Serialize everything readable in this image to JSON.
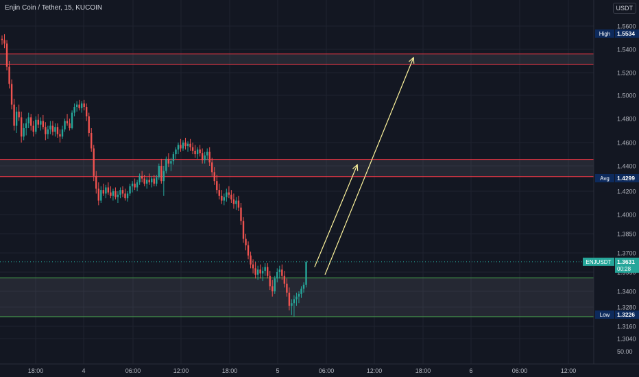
{
  "header": {
    "title": "Enjin Coin / Tether, 15, KUCOIN",
    "currency_button": "USDT"
  },
  "colors": {
    "background": "#131722",
    "grid": "#1f2330",
    "up": "#26a69a",
    "down": "#ef5350",
    "zone_red": "#f23645",
    "zone_green": "#4caf50",
    "arrow": "#fff59d",
    "axis_text": "#b2b5be",
    "label_bg": "#0d2a5c",
    "price_label_bg": "#26a69a"
  },
  "axis_labels": {
    "y_ticks": [
      1.56,
      1.54,
      1.52,
      1.5,
      1.48,
      1.46,
      1.44,
      1.42,
      1.4,
      1.385,
      1.37,
      1.355,
      1.34,
      1.328,
      1.316,
      1.304
    ],
    "y_tick_texts": [
      "1.5600",
      "1.5400",
      "1.5200",
      "1.5000",
      "1.4800",
      "1.4600",
      "1.4400",
      "1.4200",
      "1.4000",
      "1.3850",
      "1.3700",
      "1.3550",
      "1.3400",
      "1.3280",
      "1.3160",
      "1.3040"
    ],
    "y_extra": "50.00",
    "x_ticks": [
      "18:00",
      "4",
      "06:00",
      "12:00",
      "18:00",
      "5",
      "06:00",
      "12:00",
      "18:00",
      "6",
      "06:00",
      "12:00"
    ]
  },
  "price_labels": {
    "high": {
      "name": "High",
      "value": "1.5534"
    },
    "avg": {
      "name": "Avg",
      "value": "1.4299"
    },
    "current": {
      "name": "ENJUSDT",
      "value": "1.3631",
      "countdown": "00:28"
    },
    "low": {
      "name": "Low",
      "value": "1.3226"
    }
  },
  "chart_data": {
    "type": "candlestick",
    "title": "Enjin Coin / Tether, 15, KUCOIN",
    "y_scale": "piecewise (as printed on axis)",
    "ylim": [
      1.304,
      1.565
    ],
    "high": 1.5534,
    "avg": 1.4299,
    "low": 1.3226,
    "last": 1.3631,
    "zones": [
      {
        "color": "red",
        "from": 1.527,
        "to": 1.536
      },
      {
        "color": "red",
        "from": 1.4315,
        "to": 1.4455
      },
      {
        "color": "green",
        "from": 1.322,
        "to": 1.3505
      }
    ],
    "candles": [
      [
        1.549,
        1.552,
        1.544,
        1.548
      ],
      [
        1.548,
        1.553,
        1.541,
        1.545
      ],
      [
        1.545,
        1.548,
        1.522,
        1.525
      ],
      [
        1.525,
        1.53,
        1.506,
        1.51
      ],
      [
        1.51,
        1.514,
        1.488,
        1.492
      ],
      [
        1.492,
        1.497,
        1.47,
        1.474
      ],
      [
        1.474,
        1.49,
        1.468,
        1.486
      ],
      [
        1.486,
        1.492,
        1.478,
        1.481
      ],
      [
        1.481,
        1.486,
        1.46,
        1.465
      ],
      [
        1.465,
        1.476,
        1.462,
        1.472
      ],
      [
        1.472,
        1.48,
        1.466,
        1.476
      ],
      [
        1.476,
        1.485,
        1.472,
        1.481
      ],
      [
        1.481,
        1.484,
        1.47,
        1.474
      ],
      [
        1.474,
        1.478,
        1.465,
        1.469
      ],
      [
        1.469,
        1.482,
        1.467,
        1.479
      ],
      [
        1.479,
        1.484,
        1.472,
        1.475
      ],
      [
        1.475,
        1.481,
        1.47,
        1.478
      ],
      [
        1.478,
        1.483,
        1.471,
        1.473
      ],
      [
        1.473,
        1.477,
        1.462,
        1.467
      ],
      [
        1.467,
        1.474,
        1.463,
        1.471
      ],
      [
        1.471,
        1.478,
        1.467,
        1.474
      ],
      [
        1.474,
        1.478,
        1.466,
        1.469
      ],
      [
        1.469,
        1.476,
        1.465,
        1.473
      ],
      [
        1.473,
        1.476,
        1.464,
        1.467
      ],
      [
        1.467,
        1.471,
        1.46,
        1.465
      ],
      [
        1.465,
        1.474,
        1.463,
        1.471
      ],
      [
        1.471,
        1.48,
        1.469,
        1.478
      ],
      [
        1.478,
        1.484,
        1.474,
        1.476
      ],
      [
        1.476,
        1.48,
        1.47,
        1.472
      ],
      [
        1.472,
        1.487,
        1.471,
        1.485
      ],
      [
        1.485,
        1.493,
        1.482,
        1.49
      ],
      [
        1.49,
        1.495,
        1.486,
        1.492
      ],
      [
        1.492,
        1.496,
        1.487,
        1.489
      ],
      [
        1.489,
        1.495,
        1.485,
        1.493
      ],
      [
        1.493,
        1.496,
        1.487,
        1.49
      ],
      [
        1.49,
        1.493,
        1.478,
        1.482
      ],
      [
        1.482,
        1.485,
        1.465,
        1.468
      ],
      [
        1.468,
        1.472,
        1.452,
        1.455
      ],
      [
        1.455,
        1.458,
        1.428,
        1.432
      ],
      [
        1.432,
        1.436,
        1.418,
        1.422
      ],
      [
        1.422,
        1.427,
        1.408,
        1.412
      ],
      [
        1.412,
        1.424,
        1.41,
        1.421
      ],
      [
        1.421,
        1.426,
        1.416,
        1.418
      ],
      [
        1.418,
        1.425,
        1.414,
        1.423
      ],
      [
        1.423,
        1.427,
        1.417,
        1.419
      ],
      [
        1.419,
        1.424,
        1.414,
        1.416
      ],
      [
        1.416,
        1.422,
        1.412,
        1.42
      ],
      [
        1.42,
        1.423,
        1.413,
        1.415
      ],
      [
        1.415,
        1.42,
        1.41,
        1.417
      ],
      [
        1.417,
        1.423,
        1.414,
        1.421
      ],
      [
        1.421,
        1.424,
        1.415,
        1.418
      ],
      [
        1.418,
        1.422,
        1.412,
        1.414
      ],
      [
        1.414,
        1.42,
        1.411,
        1.418
      ],
      [
        1.418,
        1.426,
        1.416,
        1.424
      ],
      [
        1.424,
        1.428,
        1.419,
        1.426
      ],
      [
        1.426,
        1.43,
        1.421,
        1.423
      ],
      [
        1.423,
        1.429,
        1.42,
        1.427
      ],
      [
        1.427,
        1.434,
        1.425,
        1.432
      ],
      [
        1.432,
        1.436,
        1.427,
        1.43
      ],
      [
        1.43,
        1.433,
        1.424,
        1.426
      ],
      [
        1.426,
        1.431,
        1.422,
        1.429
      ],
      [
        1.429,
        1.434,
        1.425,
        1.427
      ],
      [
        1.427,
        1.432,
        1.423,
        1.43
      ],
      [
        1.43,
        1.433,
        1.424,
        1.426
      ],
      [
        1.426,
        1.433,
        1.424,
        1.431
      ],
      [
        1.431,
        1.442,
        1.429,
        1.44
      ],
      [
        1.44,
        1.446,
        1.426,
        1.428
      ],
      [
        1.428,
        1.44,
        1.416,
        1.436
      ],
      [
        1.436,
        1.448,
        1.434,
        1.446
      ],
      [
        1.446,
        1.451,
        1.439,
        1.442
      ],
      [
        1.442,
        1.447,
        1.436,
        1.444
      ],
      [
        1.444,
        1.452,
        1.441,
        1.45
      ],
      [
        1.45,
        1.456,
        1.446,
        1.454
      ],
      [
        1.454,
        1.46,
        1.45,
        1.458
      ],
      [
        1.458,
        1.463,
        1.452,
        1.455
      ],
      [
        1.455,
        1.462,
        1.453,
        1.46
      ],
      [
        1.46,
        1.464,
        1.454,
        1.457
      ],
      [
        1.457,
        1.461,
        1.452,
        1.459
      ],
      [
        1.459,
        1.463,
        1.453,
        1.456
      ],
      [
        1.456,
        1.46,
        1.45,
        1.453
      ],
      [
        1.453,
        1.458,
        1.447,
        1.45
      ],
      [
        1.45,
        1.456,
        1.446,
        1.454
      ],
      [
        1.454,
        1.458,
        1.448,
        1.451
      ],
      [
        1.451,
        1.455,
        1.442,
        1.445
      ],
      [
        1.445,
        1.452,
        1.442,
        1.449
      ],
      [
        1.449,
        1.455,
        1.445,
        1.452
      ],
      [
        1.452,
        1.456,
        1.44,
        1.443
      ],
      [
        1.443,
        1.447,
        1.432,
        1.435
      ],
      [
        1.435,
        1.439,
        1.425,
        1.428
      ],
      [
        1.428,
        1.433,
        1.418,
        1.421
      ],
      [
        1.421,
        1.426,
        1.413,
        1.416
      ],
      [
        1.416,
        1.421,
        1.409,
        1.412
      ],
      [
        1.412,
        1.418,
        1.408,
        1.415
      ],
      [
        1.415,
        1.422,
        1.411,
        1.419
      ],
      [
        1.419,
        1.424,
        1.414,
        1.417
      ],
      [
        1.417,
        1.421,
        1.41,
        1.413
      ],
      [
        1.413,
        1.418,
        1.405,
        1.409
      ],
      [
        1.409,
        1.415,
        1.404,
        1.412
      ],
      [
        1.412,
        1.416,
        1.403,
        1.406
      ],
      [
        1.406,
        1.41,
        1.392,
        1.395
      ],
      [
        1.395,
        1.398,
        1.378,
        1.381
      ],
      [
        1.381,
        1.385,
        1.372,
        1.376
      ],
      [
        1.376,
        1.379,
        1.365,
        1.368
      ],
      [
        1.368,
        1.371,
        1.358,
        1.361
      ],
      [
        1.361,
        1.365,
        1.354,
        1.358
      ],
      [
        1.358,
        1.363,
        1.35,
        1.353
      ],
      [
        1.353,
        1.36,
        1.349,
        1.357
      ],
      [
        1.357,
        1.361,
        1.35,
        1.354
      ],
      [
        1.354,
        1.359,
        1.348,
        1.356
      ],
      [
        1.356,
        1.362,
        1.352,
        1.359
      ],
      [
        1.359,
        1.362,
        1.35,
        1.352
      ],
      [
        1.352,
        1.356,
        1.341,
        1.344
      ],
      [
        1.344,
        1.349,
        1.336,
        1.34
      ],
      [
        1.34,
        1.352,
        1.338,
        1.35
      ],
      [
        1.35,
        1.358,
        1.347,
        1.355
      ],
      [
        1.355,
        1.36,
        1.35,
        1.357
      ],
      [
        1.357,
        1.361,
        1.349,
        1.352
      ],
      [
        1.352,
        1.356,
        1.343,
        1.346
      ],
      [
        1.346,
        1.35,
        1.336,
        1.339
      ],
      [
        1.339,
        1.343,
        1.326,
        1.329
      ],
      [
        1.329,
        1.334,
        1.323,
        1.331
      ],
      [
        1.331,
        1.337,
        1.322,
        1.334
      ],
      [
        1.334,
        1.339,
        1.329,
        1.336
      ],
      [
        1.336,
        1.34,
        1.331,
        1.338
      ],
      [
        1.338,
        1.344,
        1.335,
        1.342
      ],
      [
        1.342,
        1.347,
        1.339,
        1.345
      ],
      [
        1.345,
        1.364,
        1.343,
        1.3631
      ]
    ],
    "arrows": [
      {
        "from": {
          "i": 129.5,
          "y": 1.359
        },
        "to": {
          "i": 147.2,
          "y": 1.441
        }
      },
      {
        "from": {
          "i": 133.8,
          "y": 1.353
        },
        "to": {
          "i": 170.5,
          "y": 1.533
        }
      }
    ]
  }
}
